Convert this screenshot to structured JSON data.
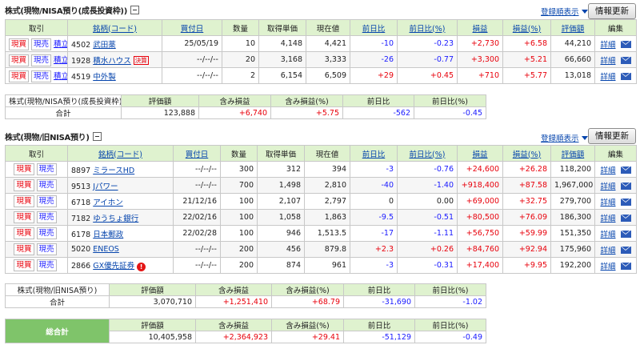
{
  "nisa_growth": {
    "title": "株式(現物/NISA預り(成長投資枠))",
    "sort_link": "登録順表示",
    "refresh": "情報更新",
    "headers": [
      "取引",
      "銘柄(コード)",
      "買付日",
      "数量",
      "取得単価",
      "現在値",
      "前日比",
      "前日比(%)",
      "損益",
      "損益(%)",
      "評価額",
      "編集"
    ],
    "actions": {
      "buy": "現買",
      "sell": "現売",
      "tsumi": "積立"
    },
    "detail": "詳細",
    "rows": [
      {
        "code": "4502",
        "name": "武田薬",
        "badge": "",
        "date": "25/05/19",
        "qty": "10",
        "cost": "4,148",
        "price": "4,421",
        "chg": "-10",
        "chg_pct": "-0.23",
        "pl": "+2,730",
        "pl_pct": "+6.58",
        "value": "44,210"
      },
      {
        "code": "1928",
        "name": "積水ハウス",
        "badge": "決算",
        "date": "--/--/--",
        "qty": "20",
        "cost": "3,168",
        "price": "3,333",
        "chg": "-26",
        "chg_pct": "-0.77",
        "pl": "+3,300",
        "pl_pct": "+5.21",
        "value": "66,660"
      },
      {
        "code": "4519",
        "name": "中外製",
        "badge": "",
        "date": "--/--/--",
        "qty": "2",
        "cost": "6,154",
        "price": "6,509",
        "chg": "+29",
        "chg_pct": "+0.45",
        "pl": "+710",
        "pl_pct": "+5.77",
        "value": "13,018"
      }
    ],
    "summary": {
      "label1": "株式(現物/NISA預り(成長投資枠))",
      "label2": "合計",
      "headers": [
        "評価額",
        "含み損益",
        "含み損益(%)",
        "前日比",
        "前日比(%)"
      ],
      "values": [
        "123,888",
        "+6,740",
        "+5.75",
        "-562",
        "-0.45"
      ]
    }
  },
  "nisa_old": {
    "title": "株式(現物/旧NISA預り)",
    "sort_link": "登録順表示",
    "refresh": "情報更新",
    "headers": [
      "取引",
      "銘柄(コード)",
      "買付日",
      "数量",
      "取得単価",
      "現在値",
      "前日比",
      "前日比(%)",
      "損益",
      "損益(%)",
      "評価額",
      "編集"
    ],
    "actions": {
      "buy": "現買",
      "sell": "現売"
    },
    "detail": "詳細",
    "rows": [
      {
        "code": "8897",
        "name": "ミラースHD",
        "warn": false,
        "date": "--/--/--",
        "qty": "300",
        "cost": "312",
        "price": "394",
        "chg": "-3",
        "chg_pct": "-0.76",
        "pl": "+24,600",
        "pl_pct": "+26.28",
        "value": "118,200"
      },
      {
        "code": "9513",
        "name": "Jパワー",
        "warn": false,
        "date": "--/--/--",
        "qty": "700",
        "cost": "1,498",
        "price": "2,810",
        "chg": "-40",
        "chg_pct": "-1.40",
        "pl": "+918,400",
        "pl_pct": "+87.58",
        "value": "1,967,000"
      },
      {
        "code": "6718",
        "name": "アイホン",
        "warn": false,
        "date": "21/12/16",
        "qty": "100",
        "cost": "2,107",
        "price": "2,797",
        "chg": "0",
        "chg_pct": "0.00",
        "pl": "+69,000",
        "pl_pct": "+32.75",
        "value": "279,700"
      },
      {
        "code": "7182",
        "name": "ゆうちょ銀行",
        "warn": false,
        "date": "22/02/16",
        "qty": "100",
        "cost": "1,058",
        "price": "1,863",
        "chg": "-9.5",
        "chg_pct": "-0.51",
        "pl": "+80,500",
        "pl_pct": "+76.09",
        "value": "186,300"
      },
      {
        "code": "6178",
        "name": "日本郵政",
        "warn": false,
        "date": "22/02/28",
        "qty": "100",
        "cost": "946",
        "price": "1,513.5",
        "chg": "-17",
        "chg_pct": "-1.11",
        "pl": "+56,750",
        "pl_pct": "+59.99",
        "value": "151,350"
      },
      {
        "code": "5020",
        "name": "ENEOS",
        "warn": false,
        "date": "--/--/--",
        "qty": "200",
        "cost": "456",
        "price": "879.8",
        "chg": "+2.3",
        "chg_pct": "+0.26",
        "pl": "+84,760",
        "pl_pct": "+92.94",
        "value": "175,960"
      },
      {
        "code": "2866",
        "name": "GX優先証券",
        "warn": true,
        "date": "--/--/--",
        "qty": "200",
        "cost": "874",
        "price": "961",
        "chg": "-3",
        "chg_pct": "-0.31",
        "pl": "+17,400",
        "pl_pct": "+9.95",
        "value": "192,200"
      }
    ],
    "summary": {
      "label1": "株式(現物/旧NISA預り)",
      "label2": "合計",
      "headers": [
        "評価額",
        "含み損益",
        "含み損益(%)",
        "前日比",
        "前日比(%)"
      ],
      "values": [
        "3,070,710",
        "+1,251,410",
        "+68.79",
        "-31,690",
        "-1.02"
      ]
    }
  },
  "grand_total": {
    "label": "総合計",
    "headers": [
      "評価額",
      "含み損益",
      "含み損益(%)",
      "前日比",
      "前日比(%)"
    ],
    "values": [
      "10,405,958",
      "+2,364,923",
      "+29.41",
      "-51,129",
      "-0.49"
    ]
  },
  "colors": {
    "header_bg": "#dff2cf",
    "total_bg": "#7fc46a",
    "positive": "#e8000b",
    "negative": "#1a1aff",
    "link": "#0645ad"
  }
}
